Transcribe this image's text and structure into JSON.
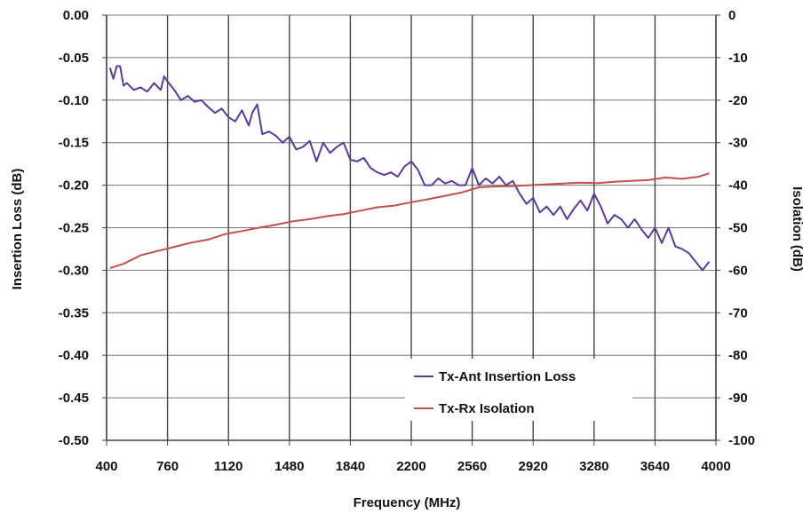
{
  "chart_data": {
    "type": "line",
    "xlabel": "Frequency (MHz)",
    "ylabel": "Insertion Loss (dB)",
    "y2label": "Isolation (dB)",
    "xlim": [
      400,
      4000
    ],
    "ylim": [
      -0.5,
      0.0
    ],
    "y2lim": [
      -100,
      0
    ],
    "grid": "vertical and horizontal",
    "legend_position": "bottom-right",
    "x_ticks": [
      "400",
      "760",
      "1120",
      "1480",
      "1840",
      "2200",
      "2560",
      "2920",
      "3280",
      "3640",
      "4000"
    ],
    "y_ticks": [
      "0.00",
      "-0.05",
      "-0.10",
      "-0.15",
      "-0.20",
      "-0.25",
      "-0.30",
      "-0.35",
      "-0.40",
      "-0.45",
      "-0.50"
    ],
    "y2_ticks": [
      "0",
      "-10",
      "-20",
      "-30",
      "-40",
      "-50",
      "-60",
      "-70",
      "-80",
      "-90",
      "-100"
    ],
    "series": [
      {
        "name": "Tx-Ant Insertion Loss",
        "axis": "left",
        "color": "#5b3a9b",
        "x": [
          420,
          440,
          460,
          480,
          500,
          520,
          560,
          600,
          640,
          680,
          720,
          740,
          760,
          800,
          840,
          880,
          920,
          960,
          1000,
          1040,
          1080,
          1120,
          1160,
          1200,
          1240,
          1260,
          1290,
          1320,
          1360,
          1400,
          1440,
          1480,
          1520,
          1560,
          1600,
          1640,
          1680,
          1720,
          1760,
          1800,
          1840,
          1880,
          1920,
          1960,
          2000,
          2040,
          2080,
          2120,
          2160,
          2200,
          2240,
          2280,
          2320,
          2360,
          2400,
          2440,
          2480,
          2520,
          2560,
          2600,
          2640,
          2680,
          2720,
          2760,
          2800,
          2840,
          2880,
          2920,
          2960,
          3000,
          3040,
          3080,
          3120,
          3160,
          3200,
          3240,
          3280,
          3320,
          3360,
          3400,
          3440,
          3480,
          3520,
          3560,
          3600,
          3640,
          3680,
          3720,
          3760,
          3800,
          3840,
          3880,
          3920,
          3960
        ],
        "y": [
          -0.062,
          -0.075,
          -0.06,
          -0.06,
          -0.083,
          -0.08,
          -0.088,
          -0.085,
          -0.09,
          -0.08,
          -0.088,
          -0.072,
          -0.078,
          -0.088,
          -0.1,
          -0.095,
          -0.102,
          -0.1,
          -0.108,
          -0.115,
          -0.11,
          -0.12,
          -0.125,
          -0.112,
          -0.13,
          -0.115,
          -0.105,
          -0.14,
          -0.137,
          -0.142,
          -0.15,
          -0.143,
          -0.158,
          -0.155,
          -0.148,
          -0.172,
          -0.15,
          -0.162,
          -0.155,
          -0.15,
          -0.17,
          -0.172,
          -0.168,
          -0.18,
          -0.185,
          -0.188,
          -0.185,
          -0.19,
          -0.178,
          -0.172,
          -0.182,
          -0.2,
          -0.2,
          -0.192,
          -0.198,
          -0.195,
          -0.2,
          -0.2,
          -0.18,
          -0.2,
          -0.192,
          -0.198,
          -0.19,
          -0.2,
          -0.195,
          -0.21,
          -0.222,
          -0.215,
          -0.232,
          -0.225,
          -0.235,
          -0.225,
          -0.24,
          -0.228,
          -0.218,
          -0.23,
          -0.21,
          -0.225,
          -0.245,
          -0.235,
          -0.24,
          -0.25,
          -0.24,
          -0.252,
          -0.262,
          -0.25,
          -0.268,
          -0.25,
          -0.272,
          -0.275,
          -0.28,
          -0.29,
          -0.3,
          -0.29
        ],
        "label_bind": "legend.series0"
      },
      {
        "name": "Tx-Rx Isolation",
        "axis": "right",
        "color": "#c0504d",
        "x": [
          420,
          500,
          600,
          700,
          800,
          900,
          1000,
          1100,
          1200,
          1300,
          1400,
          1500,
          1600,
          1700,
          1800,
          1900,
          2000,
          2100,
          2200,
          2300,
          2400,
          2500,
          2600,
          2700,
          2800,
          2900,
          3000,
          3100,
          3200,
          3300,
          3400,
          3500,
          3600,
          3700,
          3800,
          3900,
          3960
        ],
        "y": [
          -59.5,
          -58.5,
          -56.5,
          -55.5,
          -54.5,
          -53.5,
          -52.8,
          -51.5,
          -50.8,
          -50,
          -49.3,
          -48.5,
          -48,
          -47.3,
          -46.8,
          -46,
          -45.2,
          -44.8,
          -44,
          -43.3,
          -42.5,
          -41.7,
          -40.5,
          -40.3,
          -40.2,
          -40,
          -39.8,
          -39.6,
          -39.4,
          -39.5,
          -39.2,
          -39,
          -38.8,
          -38.2,
          -38.5,
          -38,
          -37.2
        ]
      }
    ]
  },
  "legend": {
    "series0": "Tx-Ant Insertion Loss",
    "series1": "Tx-Rx Isolation",
    "color0": "#5b3a9b",
    "color1": "#c0504d"
  }
}
